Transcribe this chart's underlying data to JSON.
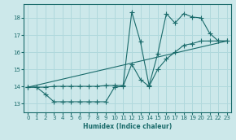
{
  "xlabel": "Humidex (Indice chaleur)",
  "bg_color": "#cce8ea",
  "grid_color": "#b0d8dc",
  "line_color": "#1a6b6b",
  "xlim": [
    -0.5,
    23.5
  ],
  "ylim": [
    12.5,
    18.8
  ],
  "xticks": [
    0,
    1,
    2,
    3,
    4,
    5,
    6,
    7,
    8,
    9,
    10,
    11,
    12,
    13,
    14,
    15,
    16,
    17,
    18,
    19,
    20,
    21,
    22,
    23
  ],
  "yticks": [
    13,
    14,
    15,
    16,
    17,
    18
  ],
  "line1_x": [
    0,
    1,
    2,
    3,
    4,
    5,
    6,
    7,
    8,
    9,
    10,
    11,
    12,
    13,
    14,
    15,
    16,
    17,
    18,
    19,
    20,
    21,
    22,
    23
  ],
  "line1_y": [
    13.95,
    13.95,
    13.55,
    13.1,
    13.1,
    13.1,
    13.1,
    13.1,
    13.1,
    13.1,
    13.95,
    14.0,
    15.3,
    14.4,
    14.0,
    15.0,
    15.6,
    16.0,
    16.4,
    16.5,
    16.65,
    16.65,
    16.65,
    16.65
  ],
  "line2_x": [
    0,
    1,
    2,
    3,
    4,
    5,
    6,
    7,
    8,
    9,
    10,
    11,
    12,
    13,
    14,
    15,
    16,
    17,
    18,
    19,
    20,
    21,
    22,
    23
  ],
  "line2_y": [
    13.95,
    13.95,
    13.95,
    14.0,
    14.0,
    14.0,
    14.0,
    14.0,
    14.0,
    14.05,
    14.05,
    14.05,
    18.35,
    16.6,
    14.05,
    15.9,
    18.25,
    17.7,
    18.25,
    18.05,
    18.0,
    17.1,
    16.65,
    16.65
  ],
  "line3_x": [
    0,
    23
  ],
  "line3_y": [
    13.95,
    16.65
  ]
}
